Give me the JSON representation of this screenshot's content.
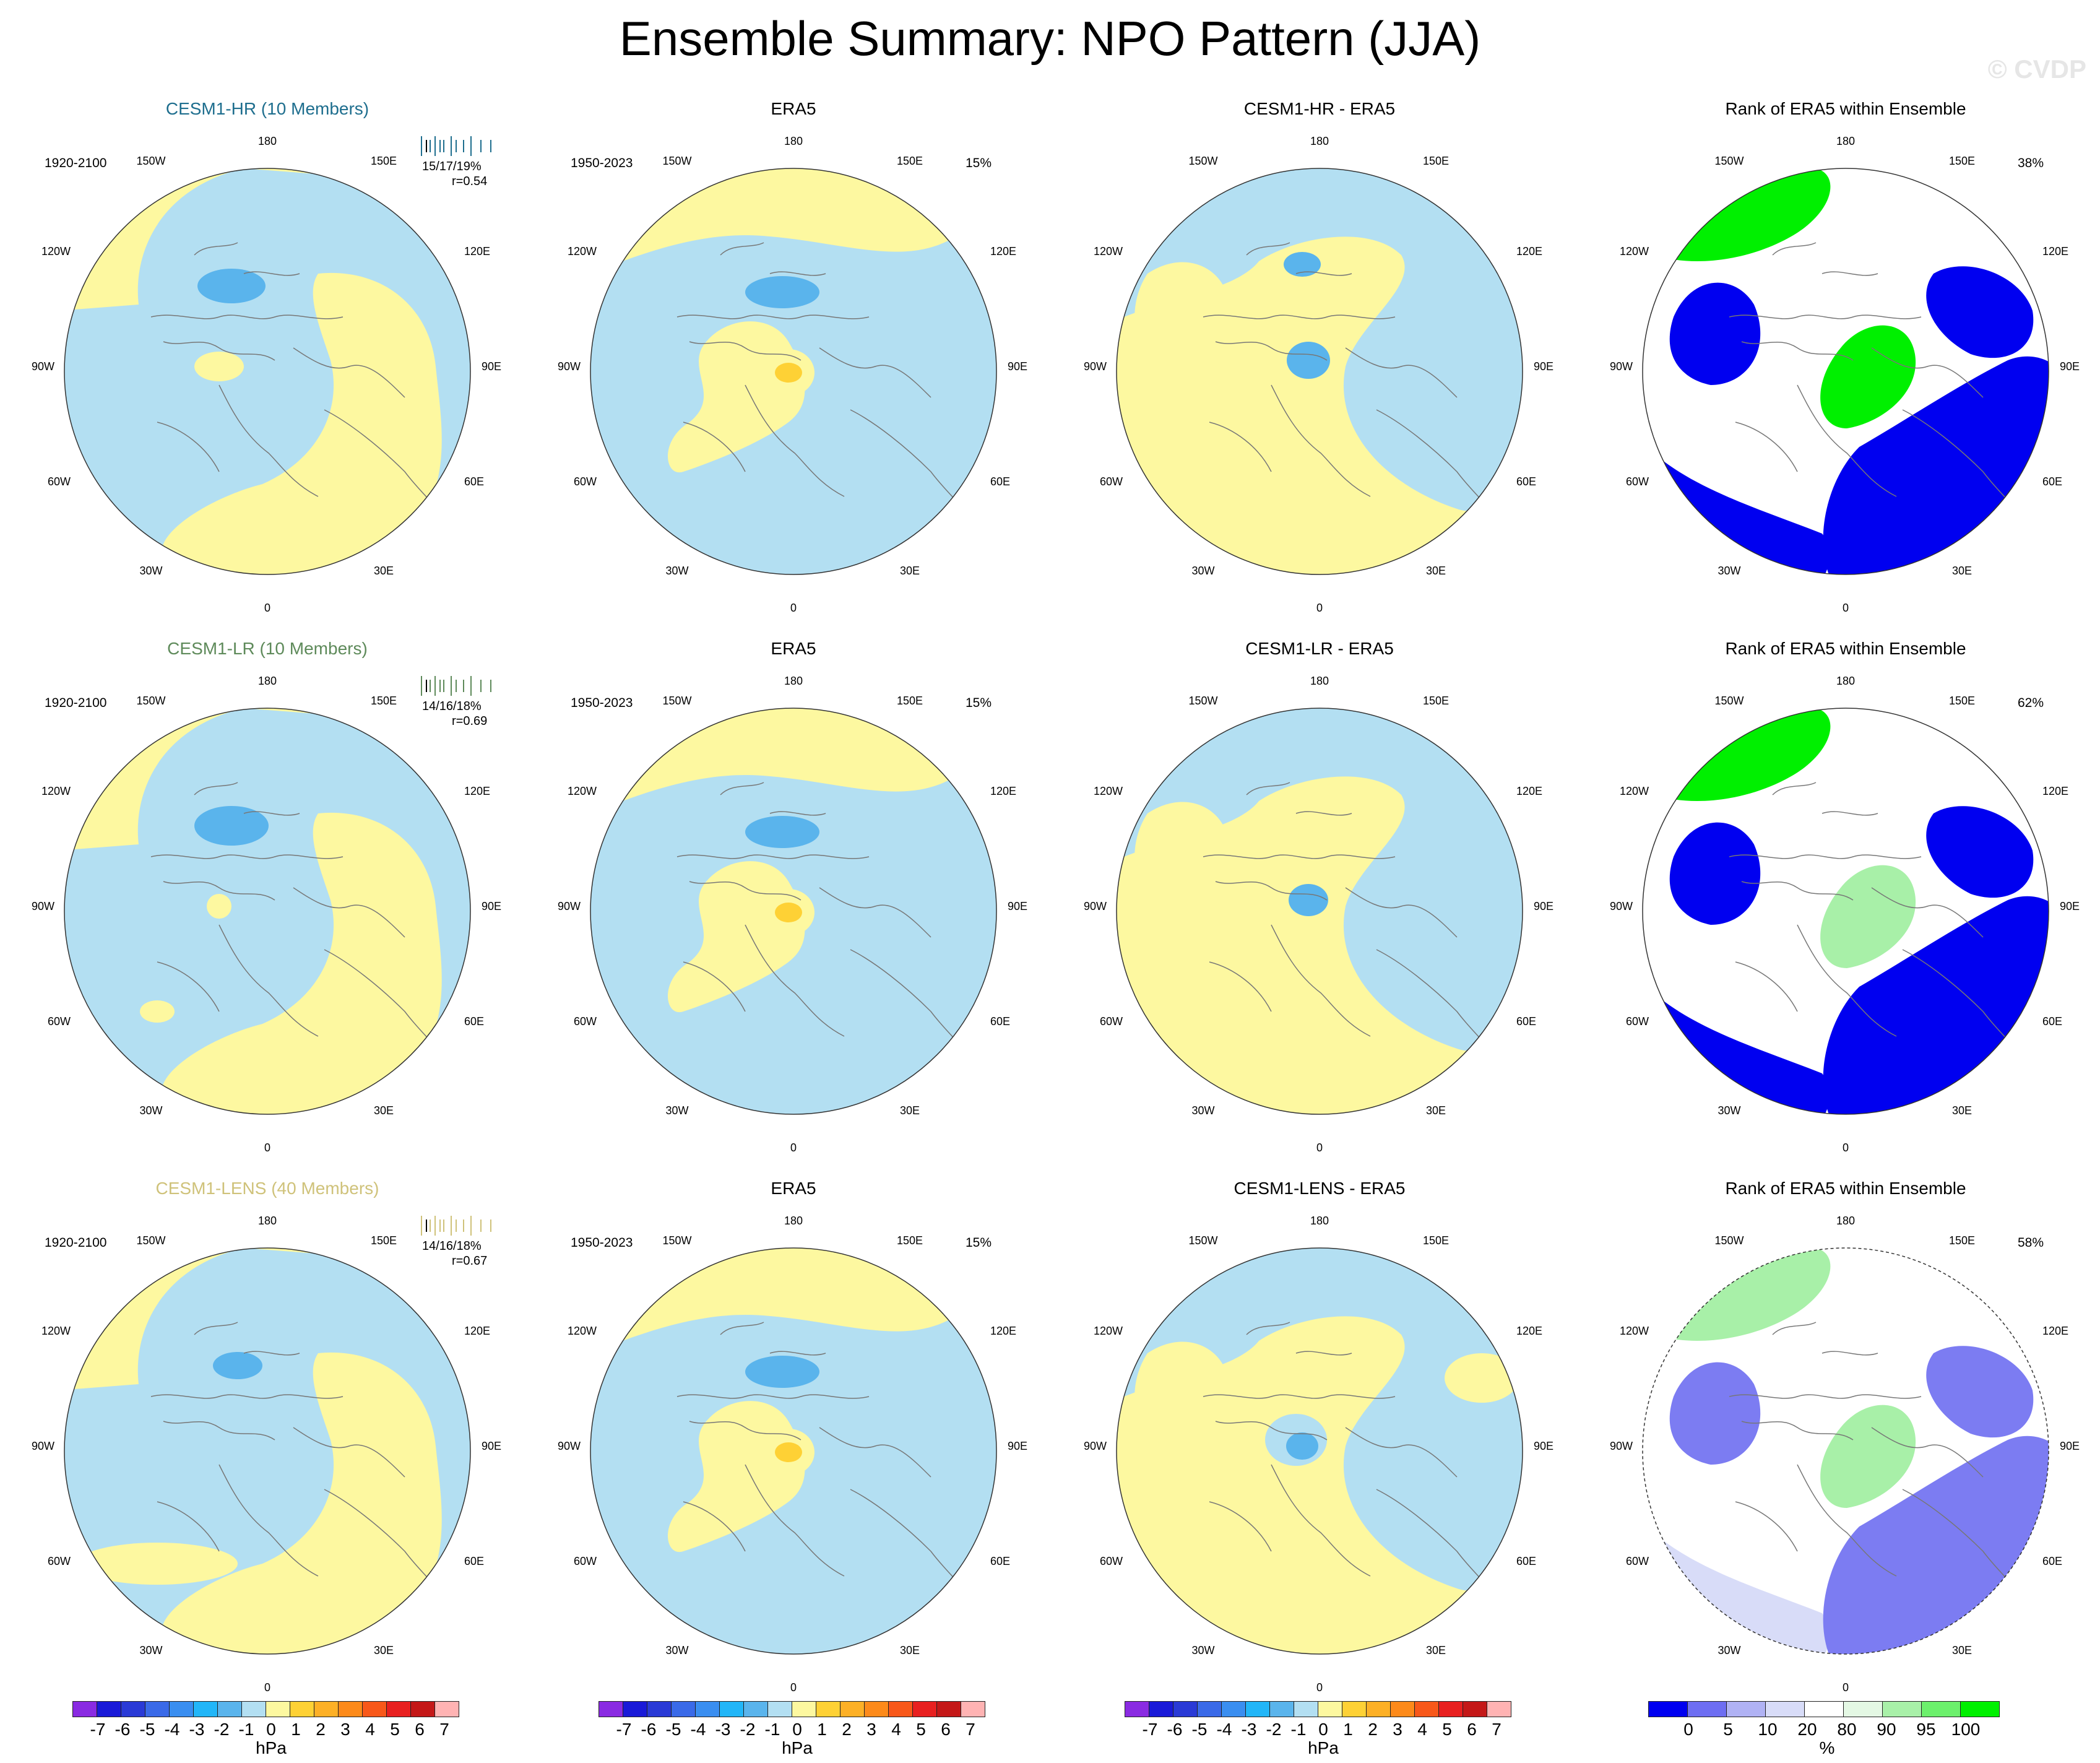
{
  "page": {
    "title": "Ensemble Summary: NPO Pattern (JJA)",
    "watermark": "© CVDP"
  },
  "rows": [
    {
      "model": "CESM1-HR (10 Members)",
      "model_color": "#1e6e8e",
      "diff_title": "CESM1-HR - ERA5",
      "model_period": "1920-2100",
      "stats_line1": "15/17/19%",
      "stats_line2": "r=0.54",
      "obs_title": "ERA5",
      "obs_period": "1950-2023",
      "obs_pct": "15%",
      "rank_title": "Rank of ERA5 within Ensemble",
      "rank_pct": "38%"
    },
    {
      "model": "CESM1-LR (10 Members)",
      "model_color": "#5e8a5a",
      "diff_title": "CESM1-LR - ERA5",
      "model_period": "1920-2100",
      "stats_line1": "14/16/18%",
      "stats_line2": "r=0.69",
      "obs_title": "ERA5",
      "obs_period": "1950-2023",
      "obs_pct": "15%",
      "rank_title": "Rank of ERA5 within Ensemble",
      "rank_pct": "62%"
    },
    {
      "model": "CESM1-LENS (40 Members)",
      "model_color": "#cfc27a",
      "diff_title": "CESM1-LENS - ERA5",
      "model_period": "1920-2100",
      "stats_line1": "14/16/18%",
      "stats_line2": "r=0.67",
      "obs_title": "ERA5",
      "obs_period": "1950-2023",
      "obs_pct": "15%",
      "rank_title": "Rank of ERA5 within Ensemble",
      "rank_pct": "58%"
    }
  ],
  "lon_labels": {
    "top": "180",
    "bottom": "0",
    "upper_left": "150W",
    "upper_right": "150E",
    "mid_upper_left": "120W",
    "mid_upper_right": "120E",
    "left": "90W",
    "right": "90E",
    "mid_lower_left": "60W",
    "mid_lower_right": "60E",
    "lower_left": "30W",
    "lower_right": "30E"
  },
  "colors": {
    "neg1": "#b3dff2",
    "pos1": "#fdf8a0",
    "neg2": "#5ab4ec",
    "pos2": "#fed135",
    "rank_blue": "#0000f0",
    "rank_green": "#00f000",
    "rank_lightgreen": "#a8f0a8",
    "rank_paleblue": "#d8dcf8",
    "rank_white": "#ffffff",
    "coast": "#777777"
  },
  "colorbar_hpa": {
    "unit": "hPa",
    "tick_labels": [
      "-7",
      "-6",
      "-5",
      "-4",
      "-3",
      "-2",
      "-1",
      "0",
      "1",
      "2",
      "3",
      "4",
      "5",
      "6",
      "7"
    ],
    "box_colors": [
      "#8a2be2",
      "#1a1ad8",
      "#2a3ad6",
      "#3a6ae8",
      "#3a8ef0",
      "#22b6f8",
      "#5ab4ec",
      "#b3dff2",
      "#fdf8a0",
      "#fed135",
      "#fdb026",
      "#fd8a1a",
      "#f8581a",
      "#e82020",
      "#c41818",
      "#ffb3b3"
    ]
  },
  "colorbar_rank": {
    "unit": "%",
    "tick_labels": [
      "0",
      "5",
      "10",
      "20",
      "80",
      "90",
      "95",
      "100"
    ],
    "box_colors": [
      "#0000f0",
      "#6e6ef2",
      "#b0b2f4",
      "#d8dcf8",
      "#ffffff",
      "#e4f8e4",
      "#a8f0a8",
      "#6cf06c",
      "#00f000"
    ]
  }
}
